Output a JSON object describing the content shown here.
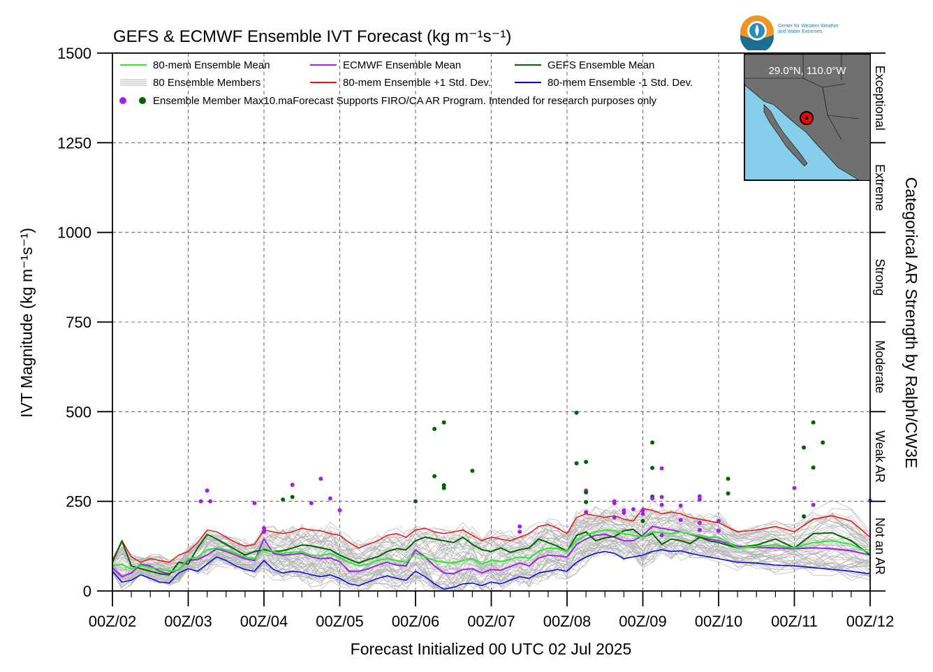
{
  "chart_data": {
    "type": "line",
    "title": "GEFS & ECMWF Ensemble IVT Forecast (kg m⁻¹s⁻¹)",
    "xlabel": "Forecast Initialized 00 UTC 02 Jul 2025",
    "ylabel": "IVT Magnitude (kg m⁻¹s⁻¹)",
    "right_label": "Categorical AR Strength by Ralph/CW3E",
    "ylim": [
      0,
      1500
    ],
    "xlim": [
      0,
      240
    ],
    "x_unit": "forecast hour",
    "yticks": [
      0,
      250,
      500,
      750,
      1000,
      1250,
      1500
    ],
    "xticks": [
      {
        "h": 0,
        "label": "00Z/02"
      },
      {
        "h": 24,
        "label": "00Z/03"
      },
      {
        "h": 48,
        "label": "00Z/04"
      },
      {
        "h": 72,
        "label": "00Z/05"
      },
      {
        "h": 96,
        "label": "00Z/06"
      },
      {
        "h": 120,
        "label": "00Z/07"
      },
      {
        "h": 144,
        "label": "00Z/08"
      },
      {
        "h": 168,
        "label": "00Z/09"
      },
      {
        "h": 192,
        "label": "00Z/10"
      },
      {
        "h": 216,
        "label": "00Z/11"
      },
      {
        "h": 240,
        "label": "00Z/12"
      }
    ],
    "categories_right": [
      {
        "label": "Not an AR",
        "from": 0,
        "to": 250
      },
      {
        "label": "Weak AR",
        "from": 250,
        "to": 500
      },
      {
        "label": "Moderate",
        "from": 500,
        "to": 750
      },
      {
        "label": "Strong",
        "from": 750,
        "to": 1000
      },
      {
        "label": "Extreme",
        "from": 1000,
        "to": 1250
      },
      {
        "label": "Exceptional",
        "from": 1250,
        "to": 1500
      }
    ],
    "grid": true,
    "legend_position": "top-left",
    "legend": [
      {
        "label": "80-mem Ensemble Mean",
        "color": "#22ee22",
        "kind": "line"
      },
      {
        "label": "80 Ensemble Members",
        "color": "#aaaaaa",
        "kind": "multiline"
      },
      {
        "label": "ECMWF Ensemble Mean",
        "color": "#a020f0",
        "kind": "line"
      },
      {
        "label": "80-mem Ensemble +1 Std. Dev.",
        "color": "#ee1111",
        "kind": "line"
      },
      {
        "label": "GEFS Ensemble Mean",
        "color": "#006400",
        "kind": "line"
      },
      {
        "label": "80-mem Ensemble -1 Std. Dev.",
        "color": "#0000ee",
        "kind": "line"
      },
      {
        "label": "Ensemble Member Max",
        "colors": [
          "#a020f0",
          "#006400"
        ],
        "kind": "dots"
      }
    ],
    "notice": "10.maForecast Supports FIRO/CA AR Program. Intended for research purposes only",
    "series_hours": [
      0,
      3,
      6,
      9,
      12,
      15,
      18,
      21,
      24,
      27,
      30,
      33,
      36,
      39,
      42,
      45,
      48,
      51,
      54,
      57,
      60,
      63,
      66,
      69,
      72,
      75,
      78,
      81,
      84,
      87,
      90,
      93,
      96,
      99,
      102,
      105,
      108,
      111,
      114,
      117,
      120,
      123,
      126,
      129,
      132,
      135,
      138,
      141,
      144,
      147,
      150,
      153,
      156,
      159,
      162,
      165,
      168,
      171,
      174,
      177,
      180,
      183,
      186,
      189,
      192,
      198,
      204,
      210,
      216,
      222,
      228,
      234,
      240
    ],
    "series": [
      {
        "name": "80-mem Ensemble Mean",
        "color": "#22ee22",
        "width": 2,
        "values": [
          70,
          75,
          60,
          72,
          65,
          62,
          55,
          58,
          90,
          95,
          115,
          120,
          115,
          105,
          95,
          90,
          120,
          110,
          105,
          108,
          110,
          100,
          98,
          105,
          92,
          80,
          70,
          75,
          85,
          90,
          85,
          80,
          105,
          95,
          85,
          80,
          78,
          85,
          90,
          75,
          85,
          82,
          88,
          95,
          92,
          110,
          120,
          118,
          110,
          140,
          155,
          165,
          170,
          168,
          160,
          155,
          150,
          165,
          162,
          160,
          165,
          158,
          155,
          150,
          150,
          120,
          125,
          128,
          120,
          135,
          140,
          130,
          105
        ]
      },
      {
        "name": "ECMWF Ensemble Mean",
        "color": "#a020f0",
        "width": 2,
        "values": [
          65,
          40,
          50,
          75,
          70,
          55,
          48,
          60,
          85,
          88,
          100,
          118,
          110,
          100,
          90,
          85,
          145,
          105,
          100,
          102,
          105,
          95,
          90,
          92,
          82,
          55,
          55,
          62,
          72,
          80,
          72,
          70,
          115,
          95,
          70,
          50,
          48,
          60,
          62,
          50,
          60,
          58,
          68,
          78,
          70,
          92,
          100,
          98,
          95,
          130,
          145,
          155,
          158,
          150,
          140,
          140,
          155,
          180,
          175,
          170,
          165,
          158,
          150,
          145,
          140,
          125,
          122,
          120,
          118,
          120,
          118,
          112,
          100
        ]
      },
      {
        "name": "GEFS Ensemble Mean",
        "color": "#006400",
        "width": 2,
        "values": [
          80,
          140,
          70,
          62,
          55,
          48,
          45,
          80,
          75,
          120,
          158,
          145,
          130,
          115,
          100,
          110,
          115,
          110,
          112,
          120,
          128,
          126,
          120,
          115,
          100,
          88,
          78,
          88,
          95,
          110,
          118,
          115,
          140,
          150,
          145,
          140,
          135,
          150,
          130,
          115,
          110,
          120,
          108,
          115,
          120,
          145,
          135,
          125,
          110,
          155,
          165,
          140,
          148,
          152,
          168,
          172,
          150,
          160,
          130,
          145,
          140,
          132,
          150,
          140,
          135,
          120,
          128,
          145,
          120,
          160,
          162,
          140,
          100
        ]
      },
      {
        "name": "80-mem Ensemble +1 Std. Dev.",
        "color": "#ee1111",
        "width": 1.5,
        "values": [
          85,
          140,
          95,
          80,
          90,
          85,
          80,
          100,
          110,
          135,
          170,
          165,
          150,
          135,
          125,
          130,
          170,
          165,
          160,
          165,
          175,
          170,
          168,
          160,
          155,
          135,
          120,
          130,
          140,
          155,
          160,
          150,
          170,
          175,
          165,
          160,
          165,
          170,
          155,
          140,
          150,
          145,
          140,
          150,
          160,
          180,
          185,
          175,
          160,
          205,
          215,
          210,
          205,
          210,
          200,
          195,
          230,
          225,
          215,
          220,
          215,
          205,
          200,
          195,
          190,
          165,
          170,
          180,
          165,
          200,
          210,
          195,
          150
        ]
      },
      {
        "name": "80-mem Ensemble -1 Std. Dev.",
        "color": "#0000ee",
        "width": 1.5,
        "values": [
          55,
          25,
          30,
          45,
          35,
          25,
          22,
          50,
          62,
          55,
          75,
          95,
          85,
          70,
          60,
          55,
          85,
          60,
          50,
          55,
          52,
          45,
          40,
          45,
          35,
          20,
          15,
          25,
          35,
          42,
          35,
          30,
          55,
          40,
          20,
          5,
          10,
          20,
          22,
          15,
          25,
          20,
          30,
          40,
          35,
          50,
          55,
          60,
          55,
          80,
          95,
          105,
          110,
          105,
          90,
          95,
          100,
          110,
          115,
          110,
          112,
          105,
          100,
          95,
          90,
          80,
          78,
          72,
          70,
          65,
          60,
          55,
          48
        ]
      }
    ],
    "member_max_dots": [
      {
        "h": 30,
        "v": 280,
        "color": "#a020f0"
      },
      {
        "h": 28,
        "v": 250,
        "color": "#a020f0"
      },
      {
        "h": 31,
        "v": 250,
        "color": "#a020f0"
      },
      {
        "h": 45,
        "v": 245,
        "color": "#a020f0"
      },
      {
        "h": 48,
        "v": 175,
        "color": "#a020f0"
      },
      {
        "h": 48,
        "v": 165,
        "color": "#a020f0"
      },
      {
        "h": 54,
        "v": 255,
        "color": "#006400"
      },
      {
        "h": 57,
        "v": 262,
        "color": "#006400"
      },
      {
        "h": 57,
        "v": 296,
        "color": "#a020f0"
      },
      {
        "h": 63,
        "v": 245,
        "color": "#a020f0"
      },
      {
        "h": 66,
        "v": 313,
        "color": "#a020f0"
      },
      {
        "h": 69,
        "v": 258,
        "color": "#a020f0"
      },
      {
        "h": 72,
        "v": 225,
        "color": "#a020f0"
      },
      {
        "h": 96,
        "v": 250,
        "color": "#006400"
      },
      {
        "h": 102,
        "v": 452,
        "color": "#006400"
      },
      {
        "h": 105,
        "v": 470,
        "color": "#006400"
      },
      {
        "h": 102,
        "v": 320,
        "color": "#006400"
      },
      {
        "h": 105,
        "v": 295,
        "color": "#006400"
      },
      {
        "h": 105,
        "v": 287,
        "color": "#006400"
      },
      {
        "h": 114,
        "v": 335,
        "color": "#006400"
      },
      {
        "h": 129,
        "v": 180,
        "color": "#a020f0"
      },
      {
        "h": 129,
        "v": 165,
        "color": "#a020f0"
      },
      {
        "h": 147,
        "v": 497,
        "color": "#006400"
      },
      {
        "h": 147,
        "v": 356,
        "color": "#006400"
      },
      {
        "h": 150,
        "v": 360,
        "color": "#006400"
      },
      {
        "h": 150,
        "v": 280,
        "color": "#a020f0"
      },
      {
        "h": 150,
        "v": 275,
        "color": "#006400"
      },
      {
        "h": 150,
        "v": 248,
        "color": "#006400"
      },
      {
        "h": 150,
        "v": 220,
        "color": "#a020f0"
      },
      {
        "h": 159,
        "v": 250,
        "color": "#a020f0"
      },
      {
        "h": 159,
        "v": 245,
        "color": "#a020f0"
      },
      {
        "h": 159,
        "v": 205,
        "color": "#a020f0"
      },
      {
        "h": 162,
        "v": 225,
        "color": "#a020f0"
      },
      {
        "h": 162,
        "v": 218,
        "color": "#a020f0"
      },
      {
        "h": 165,
        "v": 228,
        "color": "#a020f0"
      },
      {
        "h": 168,
        "v": 225,
        "color": "#a020f0"
      },
      {
        "h": 168,
        "v": 215,
        "color": "#a020f0"
      },
      {
        "h": 168,
        "v": 195,
        "color": "#006400"
      },
      {
        "h": 171,
        "v": 414,
        "color": "#006400"
      },
      {
        "h": 171,
        "v": 343,
        "color": "#006400"
      },
      {
        "h": 171,
        "v": 263,
        "color": "#006400"
      },
      {
        "h": 171,
        "v": 258,
        "color": "#a020f0"
      },
      {
        "h": 174,
        "v": 342,
        "color": "#a020f0"
      },
      {
        "h": 174,
        "v": 262,
        "color": "#a020f0"
      },
      {
        "h": 174,
        "v": 240,
        "color": "#a020f0"
      },
      {
        "h": 174,
        "v": 155,
        "color": "#a020f0"
      },
      {
        "h": 180,
        "v": 238,
        "color": "#a020f0"
      },
      {
        "h": 180,
        "v": 198,
        "color": "#a020f0"
      },
      {
        "h": 186,
        "v": 264,
        "color": "#a020f0"
      },
      {
        "h": 186,
        "v": 255,
        "color": "#a020f0"
      },
      {
        "h": 186,
        "v": 190,
        "color": "#a020f0"
      },
      {
        "h": 186,
        "v": 170,
        "color": "#a020f0"
      },
      {
        "h": 192,
        "v": 195,
        "color": "#a020f0"
      },
      {
        "h": 192,
        "v": 168,
        "color": "#a020f0"
      },
      {
        "h": 195,
        "v": 313,
        "color": "#006400"
      },
      {
        "h": 195,
        "v": 272,
        "color": "#006400"
      },
      {
        "h": 216,
        "v": 287,
        "color": "#a020f0"
      },
      {
        "h": 219,
        "v": 400,
        "color": "#006400"
      },
      {
        "h": 219,
        "v": 208,
        "color": "#006400"
      },
      {
        "h": 222,
        "v": 470,
        "color": "#006400"
      },
      {
        "h": 222,
        "v": 344,
        "color": "#006400"
      },
      {
        "h": 222,
        "v": 240,
        "color": "#a020f0"
      },
      {
        "h": 225,
        "v": 414,
        "color": "#006400"
      },
      {
        "h": 240,
        "v": 252,
        "color": "#a020f0"
      }
    ]
  },
  "inset_map": {
    "label": "29.0°N, 110.0°W",
    "lat": 29.0,
    "lon": -110.0,
    "land_color": "#707070",
    "water_color": "#87ceeb",
    "marker_color": "#ff0000"
  },
  "logo": {
    "line1": "Center for Western Weather",
    "line2": "and Water Extremes"
  }
}
